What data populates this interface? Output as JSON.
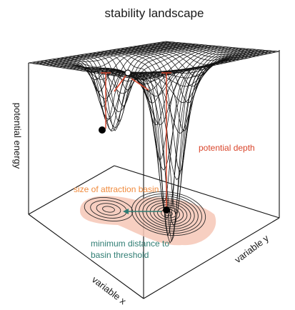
{
  "title": "stability landscape",
  "axes": {
    "z_label": "potential energy",
    "x_label": "variable x",
    "y_label": "variable y"
  },
  "annotations": {
    "potential_depth": "potential depth",
    "attraction_basin": "size of attraction basin",
    "min_distance_line1": "minimum distance to",
    "min_distance_line2": "basin threshold"
  },
  "colors": {
    "mesh": "#111111",
    "depth_marker": "#d9452b",
    "basin_label": "#f08a3c",
    "basin_fill": "#f6c7b6",
    "distance_label": "#2f7d73",
    "distance_arrow": "#2f7d73",
    "ball": "#000000"
  }
}
